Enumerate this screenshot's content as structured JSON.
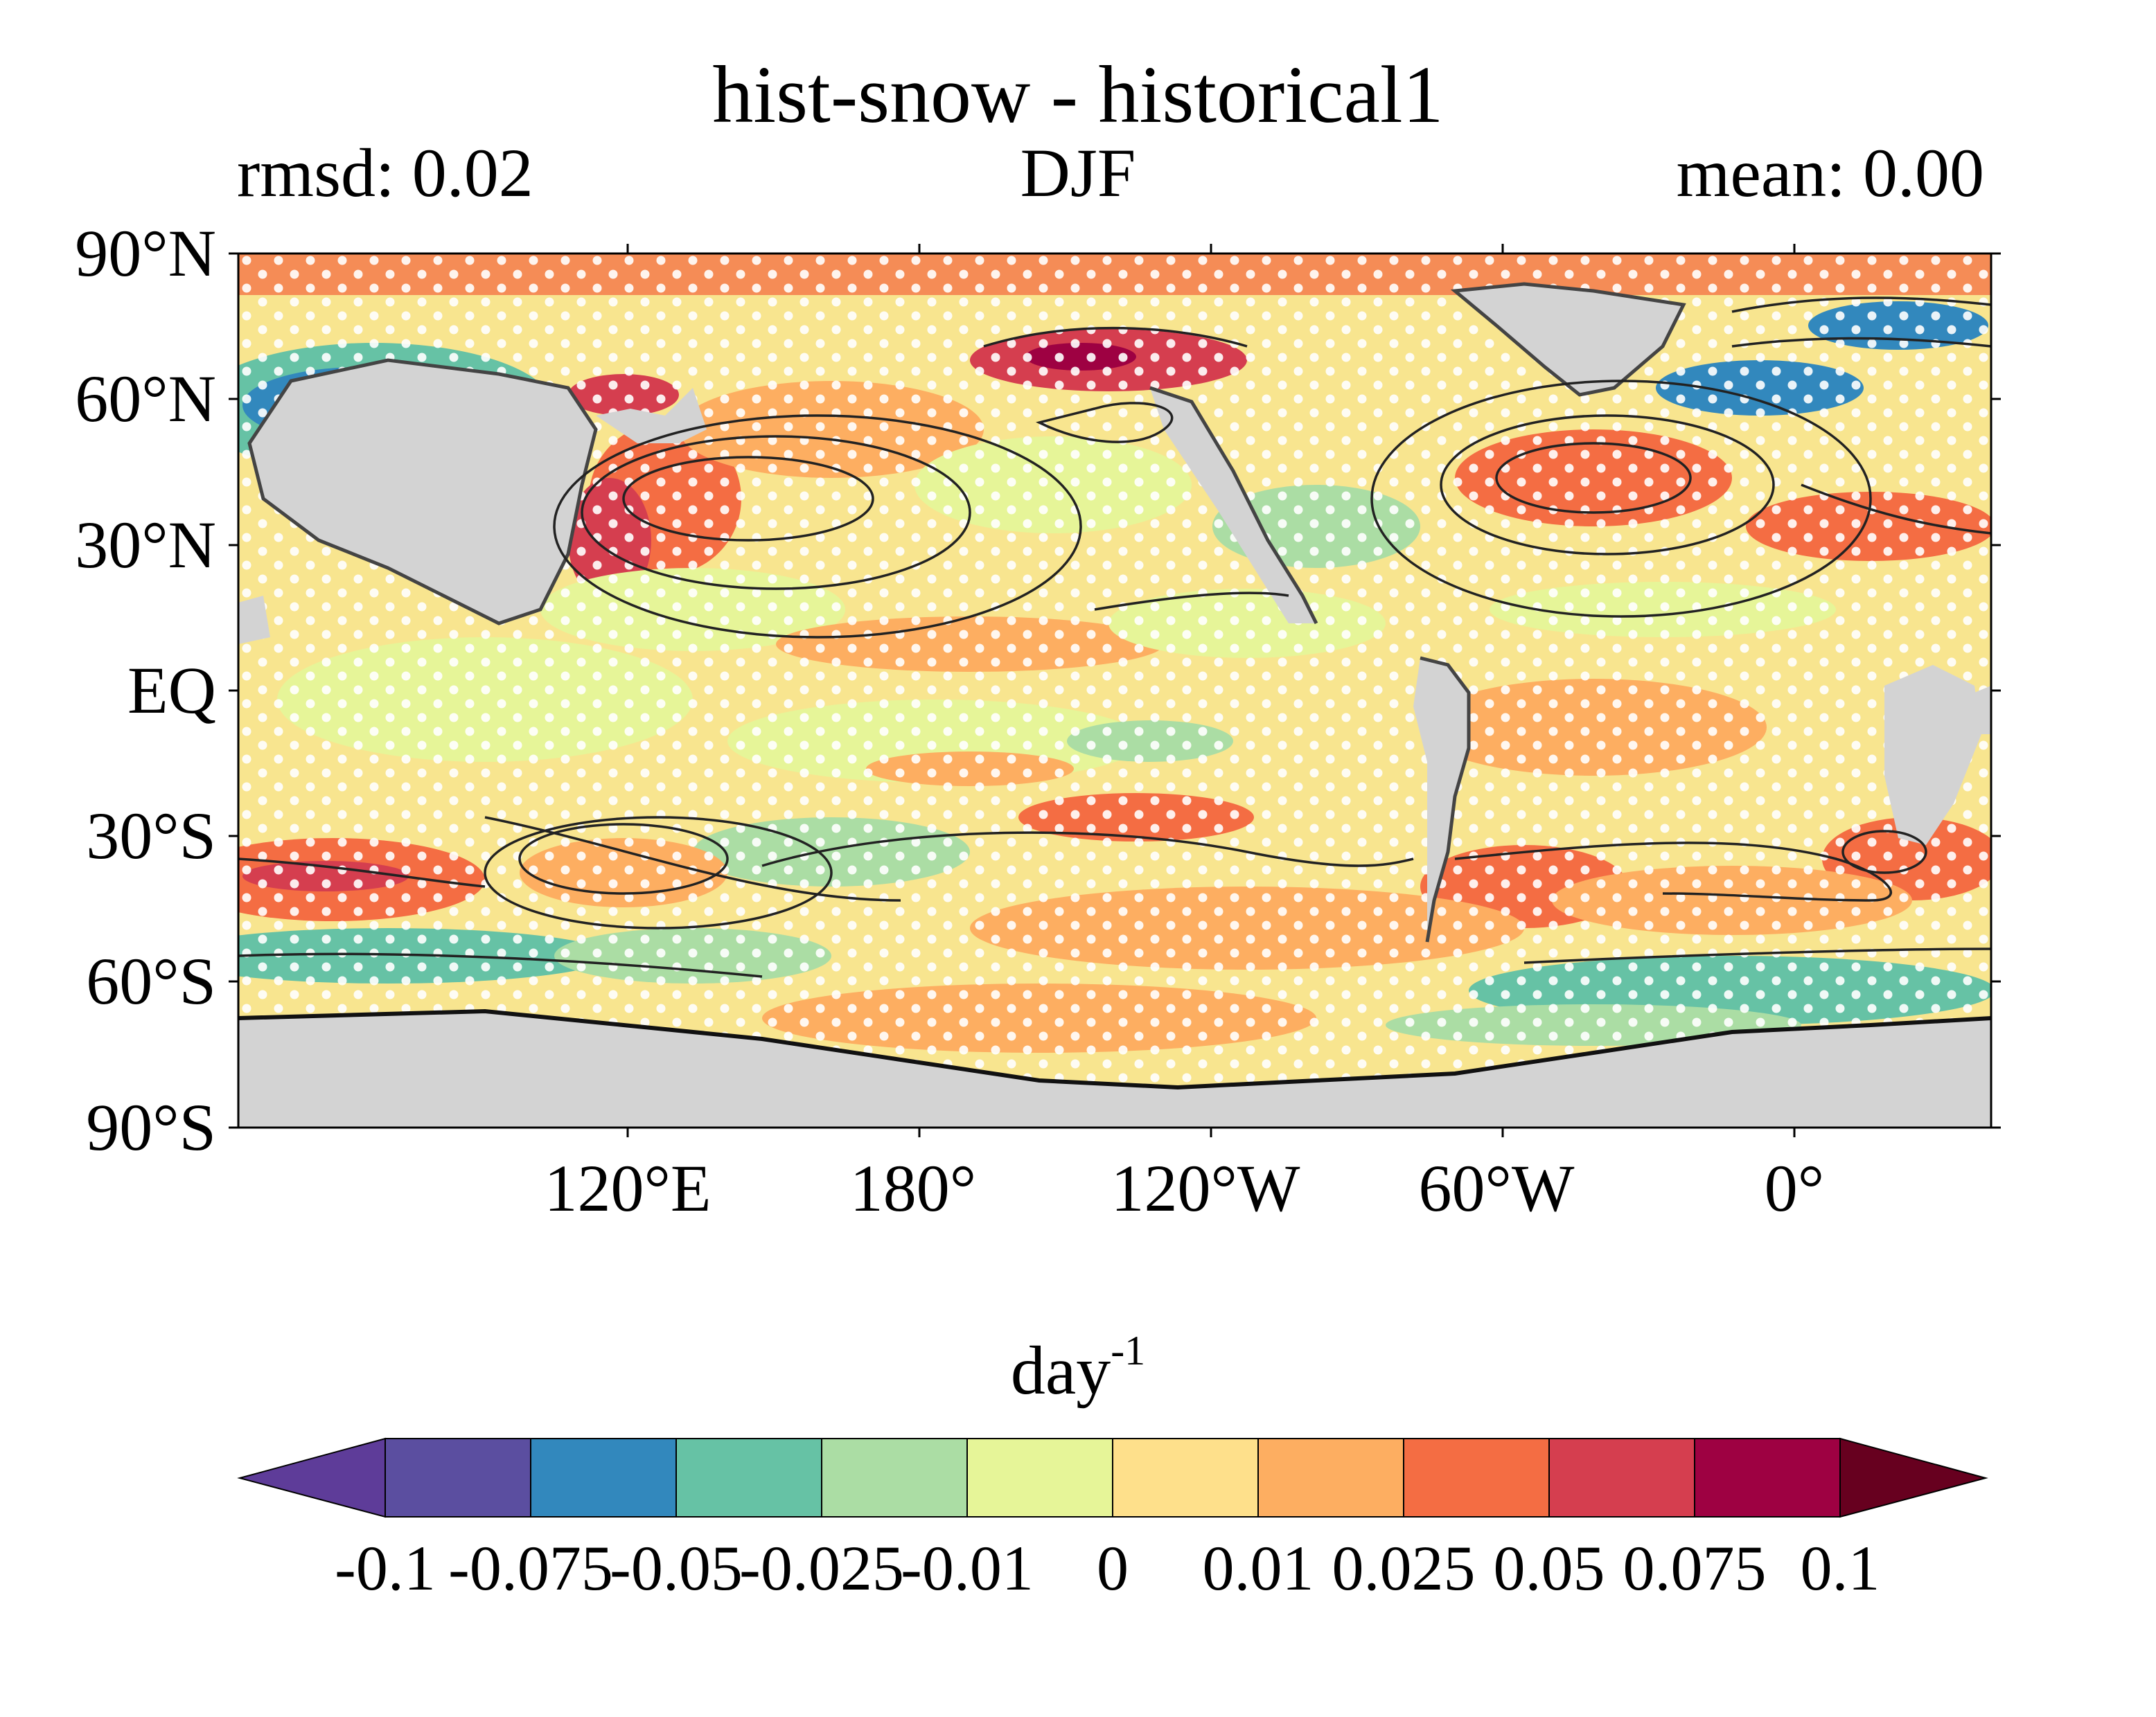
{
  "map": {
    "title": "hist-snow - historical1",
    "left_label": "rmsd: 0.02",
    "center_label": "DJF",
    "right_label": "mean: 0.00",
    "lat_labels": [
      "90°N",
      "60°N",
      "30°N",
      "EQ",
      "30°S",
      "60°S",
      "90°S"
    ],
    "lon_labels": [
      "120°E",
      "180°",
      "120°W",
      "60°W",
      "0°"
    ],
    "land_color": "#d3d3d3",
    "stipple_color": "#ffffff",
    "contour_color": "#222222"
  },
  "colorbar": {
    "units": "day",
    "units_exponent": "-1",
    "tick_labels": [
      "-0.1",
      "-0.075",
      "-0.05",
      "-0.025",
      "-0.01",
      "0",
      "0.01",
      "0.025",
      "0.05",
      "0.075",
      "0.1"
    ],
    "colors": [
      "#5e3c99",
      "#5b4ea0",
      "#3288bd",
      "#66c2a5",
      "#abdda4",
      "#e6f598",
      "#fee08b",
      "#fdae61",
      "#f46d43",
      "#d53e4f",
      "#9e0142",
      "#67001f"
    ],
    "extend": "both"
  }
}
